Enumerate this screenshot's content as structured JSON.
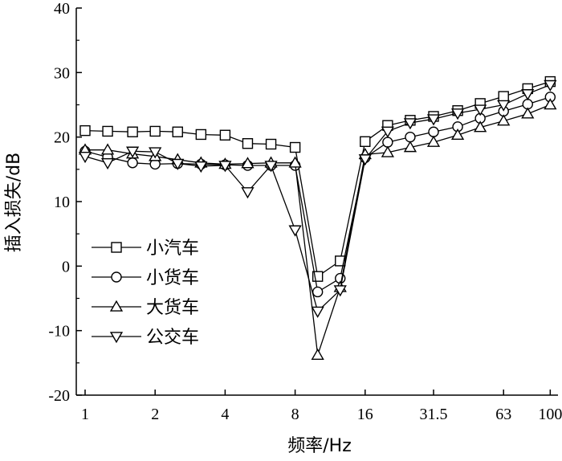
{
  "chart_data": {
    "type": "line",
    "xlabel": "频率/Hz",
    "ylabel": "插入损失/dB",
    "ylim": [
      -20,
      40
    ],
    "yticks": [
      -20,
      -10,
      0,
      10,
      20,
      30,
      40
    ],
    "xscale": "log2",
    "xticks": [
      "1",
      "2",
      "4",
      "8",
      "16",
      "31.5",
      "63",
      "100"
    ],
    "grid": false,
    "legend_position": "left-middle",
    "x": [
      1,
      1.25,
      1.6,
      2,
      2.5,
      3.15,
      4,
      5,
      6.3,
      8,
      10,
      12.5,
      16,
      20,
      25,
      31.5,
      40,
      50,
      63,
      80,
      100
    ],
    "series": [
      {
        "name": "小汽车",
        "marker": "square",
        "values": [
          21.0,
          20.9,
          20.8,
          20.9,
          20.8,
          20.4,
          20.3,
          19.0,
          18.9,
          18.4,
          -1.6,
          0.8,
          19.3,
          21.8,
          22.6,
          23.2,
          24.1,
          25.2,
          26.3,
          27.5,
          28.6
        ]
      },
      {
        "name": "小货车",
        "marker": "circle",
        "values": [
          17.8,
          16.9,
          16.0,
          15.8,
          15.9,
          15.8,
          15.7,
          15.6,
          15.6,
          15.6,
          -4.0,
          -1.9,
          16.8,
          19.2,
          20.0,
          20.8,
          21.6,
          22.9,
          24.0,
          25.1,
          26.2
        ]
      },
      {
        "name": "大货车",
        "marker": "triangle-up",
        "values": [
          18.0,
          18.0,
          17.4,
          17.0,
          16.5,
          16.0,
          15.8,
          15.9,
          16.0,
          16.0,
          -13.8,
          -3.3,
          17.3,
          17.6,
          18.4,
          19.2,
          20.3,
          21.5,
          22.5,
          23.6,
          25.0
        ]
      },
      {
        "name": "公交车",
        "marker": "triangle-down",
        "values": [
          17.0,
          16.0,
          17.8,
          17.7,
          15.9,
          15.5,
          15.6,
          11.5,
          15.6,
          5.6,
          -7.0,
          -3.7,
          16.6,
          20.9,
          22.2,
          22.8,
          23.7,
          24.3,
          25.0,
          26.7,
          28.1
        ]
      }
    ]
  }
}
